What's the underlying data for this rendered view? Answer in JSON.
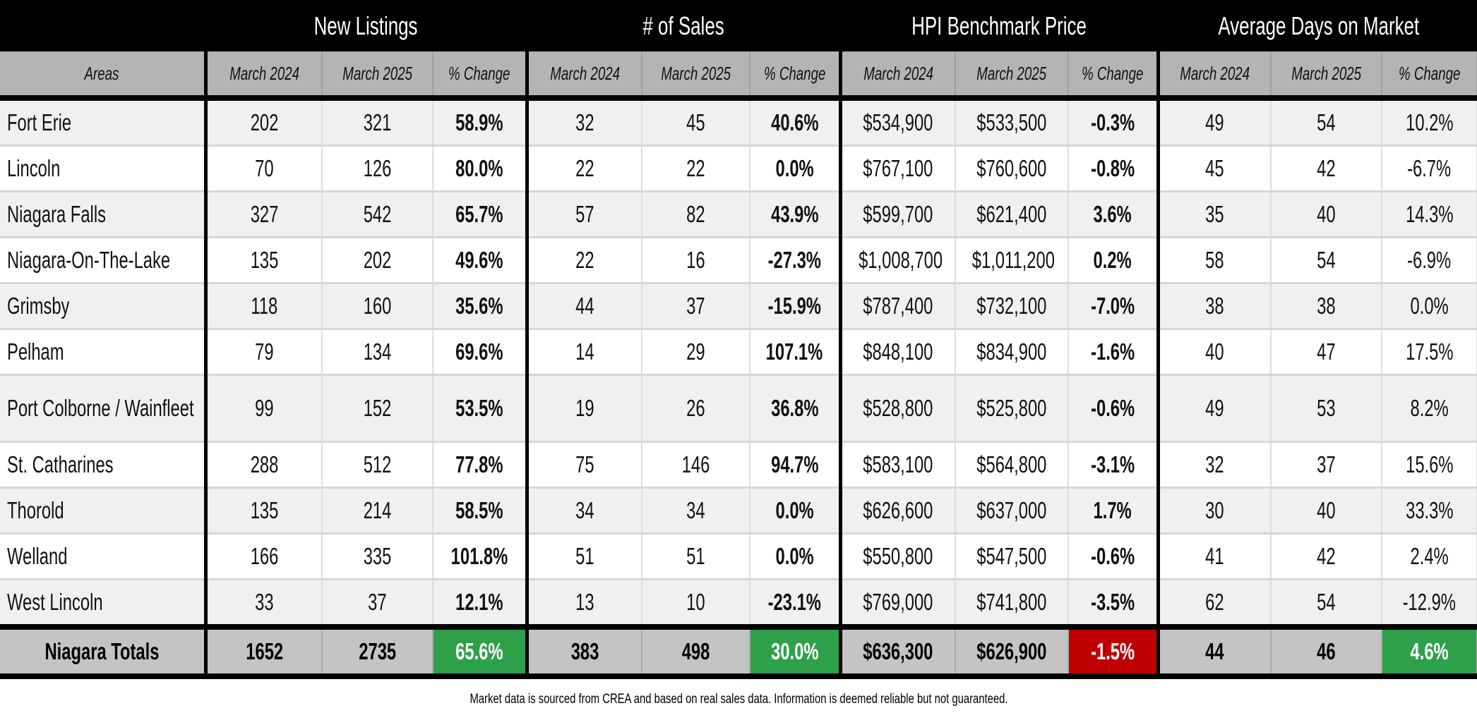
{
  "groups": [
    "New Listings",
    "# of Sales",
    "HPI Benchmark Price",
    "Average Days on Market"
  ],
  "subheaders": {
    "area": "Areas",
    "m2024": "March 2024",
    "m2025": "March 2025",
    "change": "% Change"
  },
  "colors": {
    "positive": "#2ea04a",
    "negative": "#c00000"
  },
  "rows": [
    {
      "area": "Fort Erie",
      "v": [
        "202",
        "321",
        "58.9%",
        "32",
        "45",
        "40.6%",
        "$534,900",
        "$533,500",
        "-0.3%",
        "49",
        "54",
        "10.2%"
      ]
    },
    {
      "area": "Lincoln",
      "v": [
        "70",
        "126",
        "80.0%",
        "22",
        "22",
        "0.0%",
        "$767,100",
        "$760,600",
        "-0.8%",
        "45",
        "42",
        "-6.7%"
      ]
    },
    {
      "area": "Niagara Falls",
      "v": [
        "327",
        "542",
        "65.7%",
        "57",
        "82",
        "43.9%",
        "$599,700",
        "$621,400",
        "3.6%",
        "35",
        "40",
        "14.3%"
      ]
    },
    {
      "area": "Niagara-On-The-Lake",
      "v": [
        "135",
        "202",
        "49.6%",
        "22",
        "16",
        "-27.3%",
        "$1,008,700",
        "$1,011,200",
        "0.2%",
        "58",
        "54",
        "-6.9%"
      ]
    },
    {
      "area": "Grimsby",
      "v": [
        "118",
        "160",
        "35.6%",
        "44",
        "37",
        "-15.9%",
        "$787,400",
        "$732,100",
        "-7.0%",
        "38",
        "38",
        "0.0%"
      ]
    },
    {
      "area": "Pelham",
      "v": [
        "79",
        "134",
        "69.6%",
        "14",
        "29",
        "107.1%",
        "$848,100",
        "$834,900",
        "-1.6%",
        "40",
        "47",
        "17.5%"
      ]
    },
    {
      "area": "Port Colborne / Wainfleet",
      "v": [
        "99",
        "152",
        "53.5%",
        "19",
        "26",
        "36.8%",
        "$528,800",
        "$525,800",
        "-0.6%",
        "49",
        "53",
        "8.2%"
      ]
    },
    {
      "area": "St. Catharines",
      "v": [
        "288",
        "512",
        "77.8%",
        "75",
        "146",
        "94.7%",
        "$583,100",
        "$564,800",
        "-3.1%",
        "32",
        "37",
        "15.6%"
      ]
    },
    {
      "area": "Thorold",
      "v": [
        "135",
        "214",
        "58.5%",
        "34",
        "34",
        "0.0%",
        "$626,600",
        "$637,000",
        "1.7%",
        "30",
        "40",
        "33.3%"
      ]
    },
    {
      "area": "Welland",
      "v": [
        "166",
        "335",
        "101.8%",
        "51",
        "51",
        "0.0%",
        "$550,800",
        "$547,500",
        "-0.6%",
        "41",
        "42",
        "2.4%"
      ]
    },
    {
      "area": "West Lincoln",
      "v": [
        "33",
        "37",
        "12.1%",
        "13",
        "10",
        "-23.1%",
        "$769,000",
        "$741,800",
        "-3.5%",
        "62",
        "54",
        "-12.9%"
      ]
    }
  ],
  "totals": {
    "area": "Niagara Totals",
    "v": [
      "1652",
      "2735",
      "65.6%",
      "383",
      "498",
      "30.0%",
      "$636,300",
      "$626,900",
      "-1.5%",
      "44",
      "46",
      "4.6%"
    ]
  },
  "footnote": "Market data is sourced from CREA and based on real sales data. Information is deemed reliable but not guaranteed."
}
